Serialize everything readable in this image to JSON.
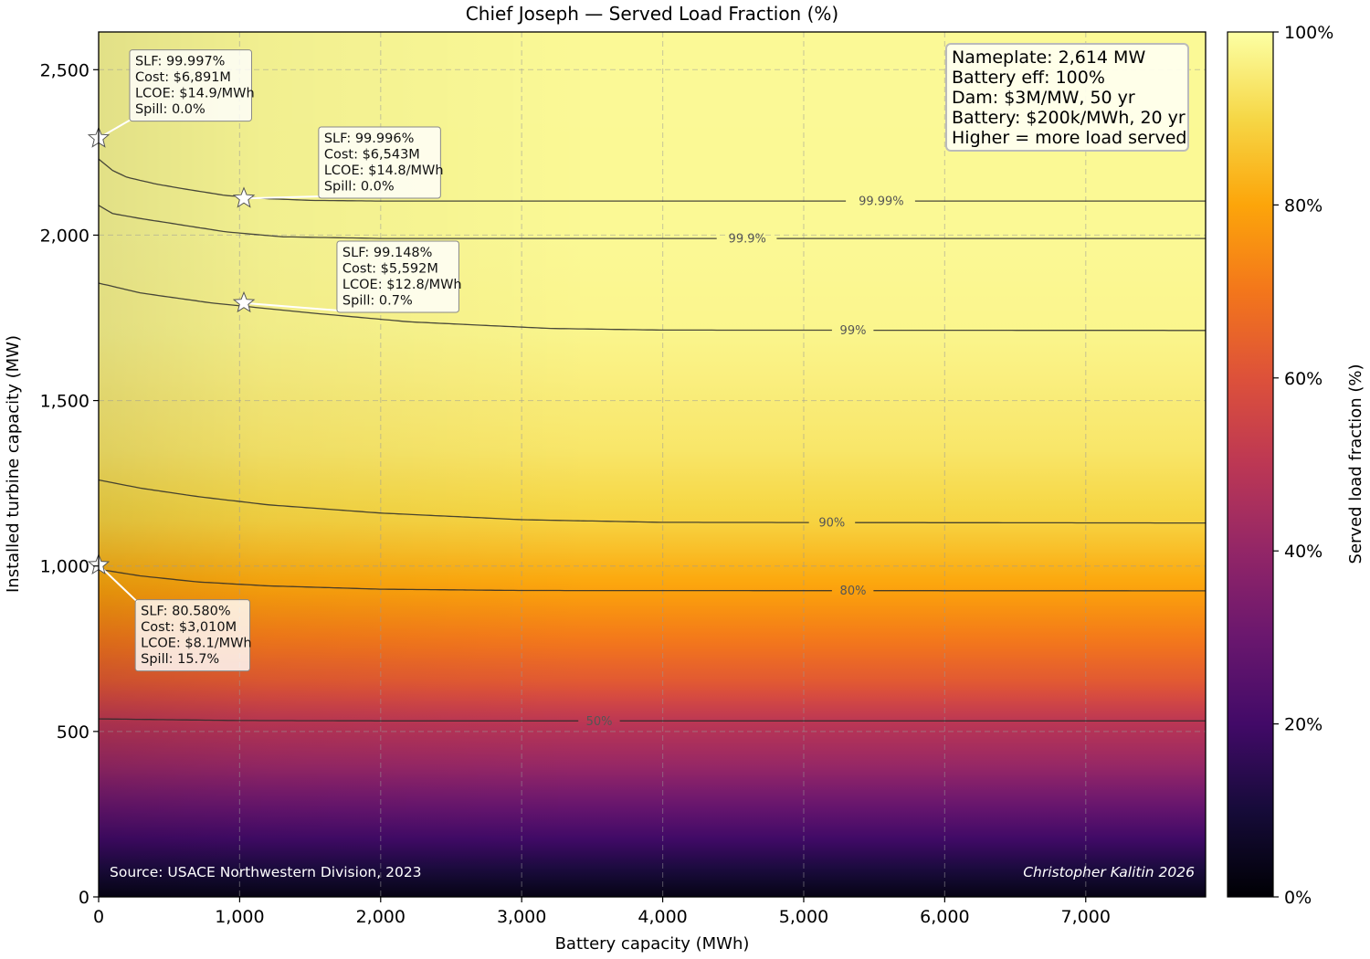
{
  "chart_data": {
    "type": "heatmap",
    "title": "Chief Joseph — Served Load Fraction (%)",
    "xlabel": "Battery capacity (MWh)",
    "ylabel": "Installed turbine capacity (MW)",
    "xlim": [
      0,
      7850
    ],
    "ylim": [
      0,
      2614
    ],
    "grid": true,
    "x_ticks": [
      {
        "value": 0,
        "label": "0"
      },
      {
        "value": 1000,
        "label": "1,000"
      },
      {
        "value": 2000,
        "label": "2,000"
      },
      {
        "value": 3000,
        "label": "3,000"
      },
      {
        "value": 4000,
        "label": "4,000"
      },
      {
        "value": 5000,
        "label": "5,000"
      },
      {
        "value": 6000,
        "label": "6,000"
      },
      {
        "value": 7000,
        "label": "7,000"
      }
    ],
    "y_ticks": [
      {
        "value": 0,
        "label": "0"
      },
      {
        "value": 500,
        "label": "500"
      },
      {
        "value": 1000,
        "label": "1,000"
      },
      {
        "value": 1500,
        "label": "1,500"
      },
      {
        "value": 2000,
        "label": "2,000"
      },
      {
        "value": 2500,
        "label": "2,500"
      }
    ],
    "colorbar": {
      "label": "Served load fraction (%)",
      "colormap": "inferno",
      "range": [
        0,
        100
      ],
      "ticks": [
        {
          "value": 0,
          "label": "0%"
        },
        {
          "value": 20,
          "label": "20%"
        },
        {
          "value": 40,
          "label": "40%"
        },
        {
          "value": 60,
          "label": "60%"
        },
        {
          "value": 80,
          "label": "80%"
        },
        {
          "value": 100,
          "label": "100%"
        }
      ]
    },
    "vertical_profile": [
      {
        "mw": 0,
        "slf": 0
      },
      {
        "mw": 100,
        "slf": 10
      },
      {
        "mw": 200,
        "slf": 20
      },
      {
        "mw": 300,
        "slf": 30
      },
      {
        "mw": 400,
        "slf": 40
      },
      {
        "mw": 540,
        "slf": 50
      },
      {
        "mw": 650,
        "slf": 62
      },
      {
        "mw": 800,
        "slf": 72
      },
      {
        "mw": 930,
        "slf": 80
      },
      {
        "mw": 1130,
        "slf": 90
      },
      {
        "mw": 1350,
        "slf": 95
      },
      {
        "mw": 1710,
        "slf": 99
      },
      {
        "mw": 1990,
        "slf": 99.9
      },
      {
        "mw": 2614,
        "slf": 100
      }
    ],
    "contours": [
      {
        "label": "50%",
        "label_x": 3550,
        "points": [
          [
            0,
            538
          ],
          [
            1000,
            533
          ],
          [
            2000,
            532
          ],
          [
            7850,
            532
          ]
        ]
      },
      {
        "label": "80%",
        "label_x": 5350,
        "points": [
          [
            0,
            990
          ],
          [
            300,
            970
          ],
          [
            700,
            952
          ],
          [
            1200,
            940
          ],
          [
            2000,
            930
          ],
          [
            3000,
            926
          ],
          [
            7850,
            925
          ]
        ]
      },
      {
        "label": "90%",
        "label_x": 5200,
        "points": [
          [
            0,
            1260
          ],
          [
            300,
            1235
          ],
          [
            700,
            1210
          ],
          [
            1200,
            1185
          ],
          [
            2000,
            1160
          ],
          [
            3000,
            1140
          ],
          [
            4000,
            1132
          ],
          [
            7850,
            1130
          ]
        ]
      },
      {
        "label": "99%",
        "label_x": 5350,
        "points": [
          [
            0,
            1855
          ],
          [
            300,
            1825
          ],
          [
            800,
            1795
          ],
          [
            1500,
            1765
          ],
          [
            2200,
            1738
          ],
          [
            3200,
            1718
          ],
          [
            4000,
            1713
          ],
          [
            7850,
            1712
          ]
        ]
      },
      {
        "label": "99.9%",
        "label_x": 4600,
        "points": [
          [
            0,
            2090
          ],
          [
            100,
            2065
          ],
          [
            300,
            2050
          ],
          [
            600,
            2030
          ],
          [
            900,
            2010
          ],
          [
            1300,
            1995
          ],
          [
            2000,
            1990
          ],
          [
            7850,
            1990
          ]
        ]
      },
      {
        "label": "99.99%",
        "label_x": 5550,
        "points": [
          [
            0,
            2230
          ],
          [
            100,
            2195
          ],
          [
            200,
            2175
          ],
          [
            400,
            2155
          ],
          [
            600,
            2140
          ],
          [
            900,
            2120
          ],
          [
            1200,
            2110
          ],
          [
            1500,
            2105
          ],
          [
            2000,
            2103
          ],
          [
            7850,
            2103
          ]
        ]
      }
    ],
    "optimal_points": [
      {
        "x": 0,
        "y": 2293,
        "lines": [
          "SLF: 99.997%",
          "Cost: $6,891M",
          "LCOE: $14.9/MWh",
          "Spill: 0.0%"
        ],
        "box_x": 220,
        "box_y": 2560
      },
      {
        "x": 1030,
        "y": 2111,
        "lines": [
          "SLF: 99.996%",
          "Cost: $6,543M",
          "LCOE: $14.8/MWh",
          "Spill: 0.0%"
        ],
        "box_x": 1560,
        "box_y": 2327
      },
      {
        "x": 1030,
        "y": 1795,
        "lines": [
          "SLF: 99.148%",
          "Cost: $5,592M",
          "LCOE: $12.8/MWh",
          "Spill: 0.7%"
        ],
        "box_x": 1690,
        "box_y": 1982
      },
      {
        "x": 0,
        "y": 1003,
        "lines": [
          "SLF: 80.580%",
          "Cost: $3,010M",
          "LCOE: $8.1/MWh",
          "Spill: 15.7%"
        ],
        "box_x": 260,
        "box_y": 898
      }
    ],
    "info_box": [
      "Nameplate: 2,614 MW",
      "Battery eff: 100%",
      "Dam: $3M/MW, 50 yr",
      "Battery: $200k/MWh, 20 yr",
      "Higher = more load served"
    ],
    "source_text": "Source: USACE Northwestern Division, 2023",
    "credit_text": "Christopher Kalitin 2026"
  }
}
